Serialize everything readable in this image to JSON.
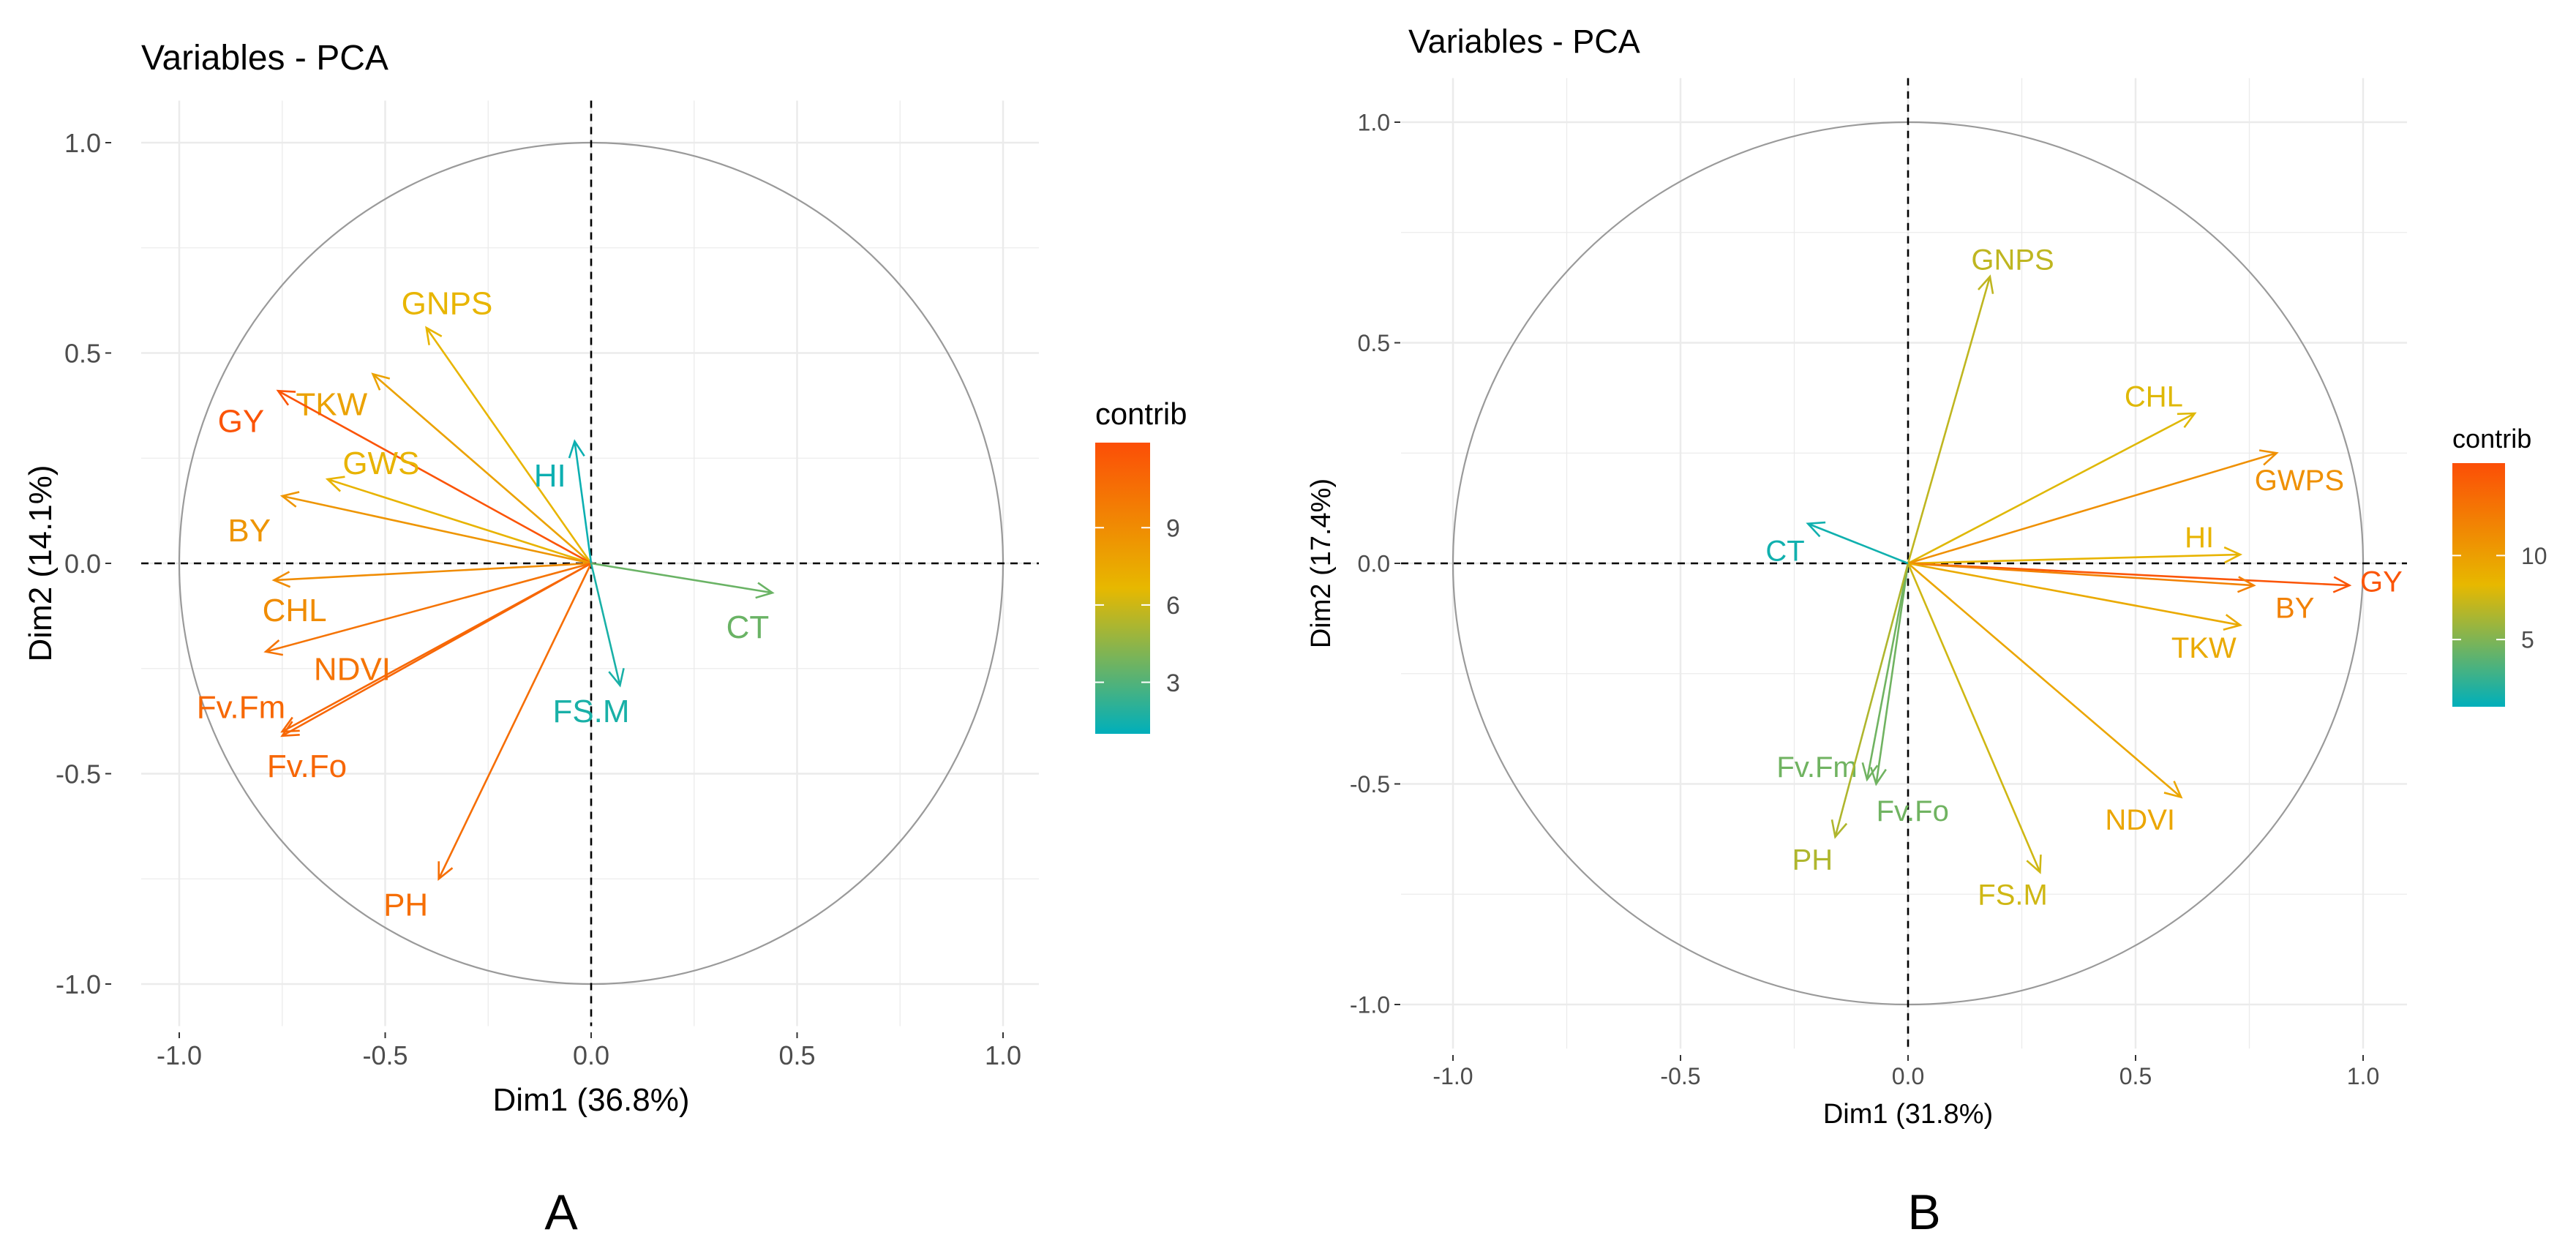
{
  "chart_data": [
    {
      "type": "scatter",
      "panel_label": "A",
      "title": "Variables - PCA",
      "xlabel": "Dim1 (36.8%)",
      "ylabel": "Dim2 (14.1%)",
      "xlim": [
        -1.0,
        1.0
      ],
      "ylim": [
        -1.0,
        1.0
      ],
      "xticks": [
        -1.0,
        -0.5,
        0.0,
        0.5,
        1.0
      ],
      "yticks": [
        -1.0,
        -0.5,
        0.0,
        0.5,
        1.0
      ],
      "xtick_labels": [
        "-1.0",
        "-0.5",
        "0.0",
        "0.5",
        "1.0"
      ],
      "ytick_labels": [
        "-1.0",
        "-0.5",
        "0.0",
        "0.5",
        "1.0"
      ],
      "grid": true,
      "legend": {
        "title": "contrib",
        "position": "right",
        "range": [
          1.0,
          12.3
        ],
        "ticks": [
          3,
          6,
          9
        ],
        "tick_labels": [
          "3",
          "6",
          "9"
        ]
      },
      "variables": [
        {
          "name": "GNPS",
          "x": -0.4,
          "y": 0.56,
          "contrib": 6.8,
          "label_x": -0.35,
          "label_y": 0.62
        },
        {
          "name": "TKW",
          "x": -0.53,
          "y": 0.45,
          "contrib": 7.8,
          "label_x": -0.63,
          "label_y": 0.38
        },
        {
          "name": "GY",
          "x": -0.76,
          "y": 0.41,
          "contrib": 12.0,
          "label_x": -0.85,
          "label_y": 0.34
        },
        {
          "name": "GWS",
          "x": -0.64,
          "y": 0.2,
          "contrib": 6.9,
          "label_x": -0.51,
          "label_y": 0.24
        },
        {
          "name": "BY",
          "x": -0.75,
          "y": 0.16,
          "contrib": 8.5,
          "label_x": -0.83,
          "label_y": 0.08
        },
        {
          "name": "CHL",
          "x": -0.77,
          "y": -0.04,
          "contrib": 9.0,
          "label_x": -0.72,
          "label_y": -0.11
        },
        {
          "name": "NDVI",
          "x": -0.79,
          "y": -0.21,
          "contrib": 10.3,
          "label_x": -0.58,
          "label_y": -0.25
        },
        {
          "name": "Fv.Fm",
          "x": -0.75,
          "y": -0.4,
          "contrib": 10.9,
          "label_x": -0.85,
          "label_y": -0.34
        },
        {
          "name": "Fv.Fo",
          "x": -0.75,
          "y": -0.41,
          "contrib": 11.0,
          "label_x": -0.69,
          "label_y": -0.48
        },
        {
          "name": "PH",
          "x": -0.37,
          "y": -0.75,
          "contrib": 10.6,
          "label_x": -0.45,
          "label_y": -0.81
        },
        {
          "name": "HI",
          "x": -0.04,
          "y": 0.29,
          "contrib": 1.3,
          "label_x": -0.1,
          "label_y": 0.21
        },
        {
          "name": "FS.M",
          "x": 0.07,
          "y": -0.29,
          "contrib": 1.6,
          "label_x": 0.0,
          "label_y": -0.35
        },
        {
          "name": "CT",
          "x": 0.44,
          "y": -0.07,
          "contrib": 3.6,
          "label_x": 0.38,
          "label_y": -0.15
        }
      ]
    },
    {
      "type": "scatter",
      "panel_label": "B",
      "title": "Variables - PCA",
      "xlabel": "Dim1 (31.8%)",
      "ylabel": "Dim2 (17.4%)",
      "xlim": [
        -1.0,
        1.0
      ],
      "ylim": [
        -1.0,
        1.0
      ],
      "xticks": [
        -1.0,
        -0.5,
        0.0,
        0.5,
        1.0
      ],
      "yticks": [
        -1.0,
        -0.5,
        0.0,
        0.5,
        1.0
      ],
      "xtick_labels": [
        "-1.0",
        "-0.5",
        "0.0",
        "0.5",
        "1.0"
      ],
      "ytick_labels": [
        "-1.0",
        "-0.5",
        "0.0",
        "0.5",
        "1.0"
      ],
      "grid": true,
      "legend": {
        "title": "contrib",
        "position": "right",
        "range": [
          1.0,
          15.5
        ],
        "ticks": [
          5,
          10
        ],
        "tick_labels": [
          "5",
          "10"
        ]
      },
      "variables": [
        {
          "name": "GNPS",
          "x": 0.18,
          "y": 0.65,
          "contrib": 7.0,
          "label_x": 0.23,
          "label_y": 0.69
        },
        {
          "name": "CHL",
          "x": 0.63,
          "y": 0.34,
          "contrib": 8.0,
          "label_x": 0.54,
          "label_y": 0.38
        },
        {
          "name": "GWPS",
          "x": 0.81,
          "y": 0.25,
          "contrib": 11.0,
          "label_x": 0.86,
          "label_y": 0.19
        },
        {
          "name": "HI",
          "x": 0.73,
          "y": 0.02,
          "contrib": 8.5,
          "label_x": 0.64,
          "label_y": 0.06
        },
        {
          "name": "GY",
          "x": 0.97,
          "y": -0.05,
          "contrib": 15.0,
          "label_x": 1.04,
          "label_y": -0.04
        },
        {
          "name": "BY",
          "x": 0.76,
          "y": -0.05,
          "contrib": 12.0,
          "label_x": 0.85,
          "label_y": -0.1
        },
        {
          "name": "TKW",
          "x": 0.73,
          "y": -0.14,
          "contrib": 9.2,
          "label_x": 0.65,
          "label_y": -0.19
        },
        {
          "name": "NDVI",
          "x": 0.6,
          "y": -0.53,
          "contrib": 9.5,
          "label_x": 0.51,
          "label_y": -0.58
        },
        {
          "name": "FS.M",
          "x": 0.29,
          "y": -0.7,
          "contrib": 7.5,
          "label_x": 0.23,
          "label_y": -0.75
        },
        {
          "name": "Fv.Fm",
          "x": -0.09,
          "y": -0.49,
          "contrib": 4.5,
          "label_x": -0.2,
          "label_y": -0.46
        },
        {
          "name": "Fv.Fo",
          "x": -0.07,
          "y": -0.5,
          "contrib": 4.5,
          "label_x": 0.01,
          "label_y": -0.56
        },
        {
          "name": "PH",
          "x": -0.16,
          "y": -0.62,
          "contrib": 6.5,
          "label_x": -0.21,
          "label_y": -0.67
        },
        {
          "name": "CT",
          "x": -0.22,
          "y": 0.09,
          "contrib": 1.5,
          "label_x": -0.27,
          "label_y": 0.03
        }
      ]
    }
  ]
}
